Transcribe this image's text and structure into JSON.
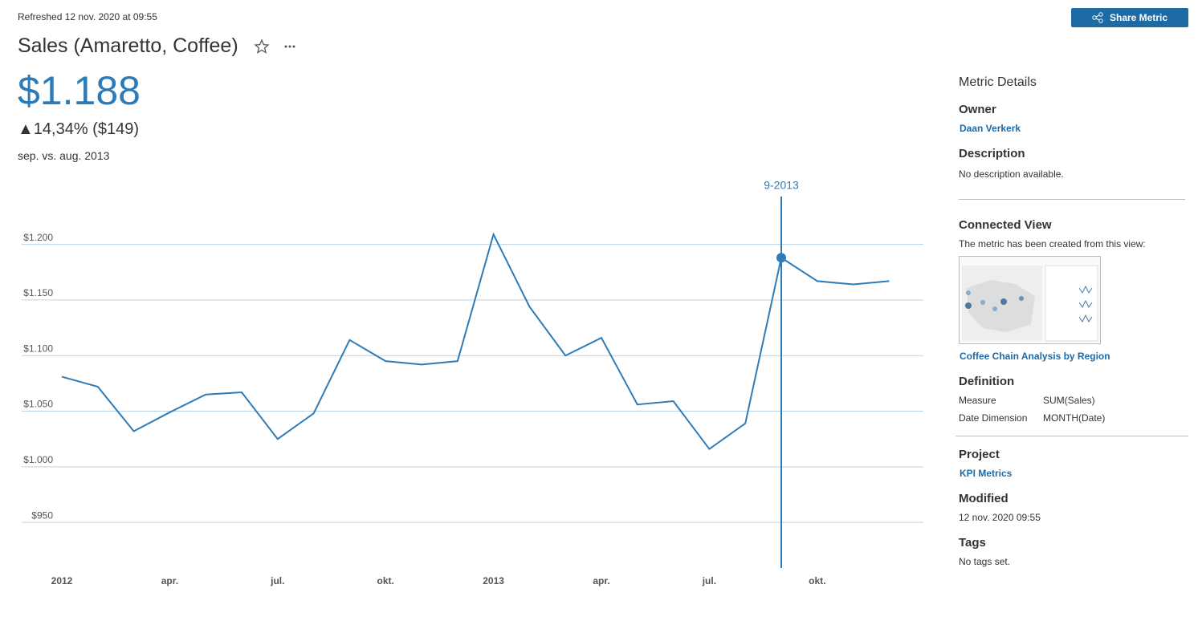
{
  "header": {
    "refreshed": "Refreshed 12 nov. 2020 at 09:55",
    "title": "Sales (Amaretto, Coffee)",
    "share_button": "Share Metric"
  },
  "kpi": {
    "value": "$1.188",
    "change": "▲14,34% ($149)",
    "comparison": "sep. vs. aug. 2013"
  },
  "chart_data": {
    "type": "line",
    "categories": [
      "2012",
      null,
      null,
      "apr.",
      null,
      null,
      "jul.",
      null,
      null,
      "okt.",
      null,
      null,
      "2013",
      null,
      null,
      "apr.",
      null,
      null,
      "jul.",
      null,
      null,
      "okt.",
      null,
      null
    ],
    "values": [
      1081,
      1072,
      1032,
      1049,
      1065,
      1067,
      1025,
      1048,
      1114,
      1095,
      1092,
      1095,
      1209,
      1144,
      1100,
      1116,
      1056,
      1059,
      1016,
      1039,
      1188,
      1167,
      1164,
      1167
    ],
    "color": "#2f7bb6",
    "ylim": [
      909,
      1243
    ],
    "yticks": [
      {
        "value": 950,
        "label": "$950"
      },
      {
        "value": 1000,
        "label": "$1.000"
      },
      {
        "value": 1050,
        "label": "$1.050"
      },
      {
        "value": 1100,
        "label": "$1.100"
      },
      {
        "value": 1150,
        "label": "$1.150"
      },
      {
        "value": 1200,
        "label": "$1.200"
      }
    ],
    "grid": true,
    "annotation": "9-2013",
    "highlight_index": 20
  },
  "details": {
    "heading": "Metric Details",
    "owner_label": "Owner",
    "owner": "Daan Verkerk",
    "description_label": "Description",
    "description": "No description available.",
    "connected_view_label": "Connected View",
    "connected_view_text": "The metric has been created from this view:",
    "connected_view_name": "Coffee Chain Analysis by Region",
    "definition_label": "Definition",
    "measure_label": "Measure",
    "measure": "SUM(Sales)",
    "date_dimension_label": "Date Dimension",
    "date_dimension": "MONTH(Date)",
    "project_label": "Project",
    "project": "KPI Metrics",
    "modified_label": "Modified",
    "modified": "12 nov. 2020 09:55",
    "tags_label": "Tags",
    "tags": "No tags set."
  }
}
